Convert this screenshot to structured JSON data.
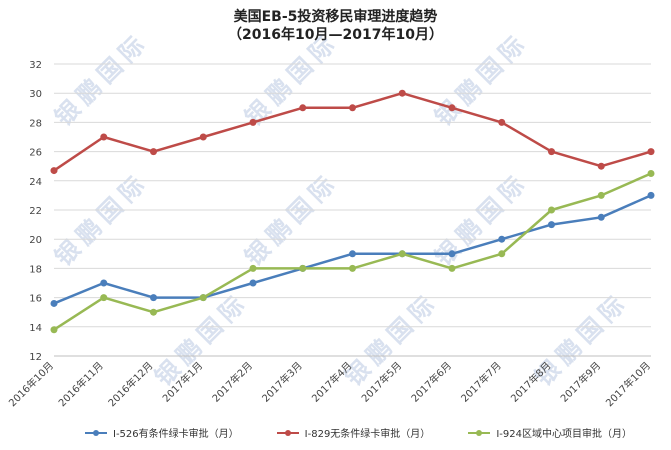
{
  "chart_data": {
    "type": "line",
    "title": "美国EB-5投资移民审理进度趋势",
    "subtitle": "（2016年10月—2017年10月）",
    "categories": [
      "2016年10月",
      "2016年11月",
      "2016年12月",
      "2017年1月",
      "2017年2月",
      "2017年3月",
      "2017年4月",
      "2017年5月",
      "2017年6月",
      "2017年7月",
      "2017年8月",
      "2017年9月",
      "2017年10月"
    ],
    "ylim": [
      12,
      32
    ],
    "yticks": [
      12,
      14,
      16,
      18,
      20,
      22,
      24,
      26,
      28,
      30,
      32
    ],
    "grid": true,
    "legend_position": "bottom",
    "series": [
      {
        "name": "I-526有条件绿卡审批（月）",
        "color": "#4a7ebb",
        "values": [
          15.6,
          17,
          16,
          16,
          17,
          18,
          19,
          19,
          19,
          20,
          21,
          21.5,
          23
        ]
      },
      {
        "name": "I-829无条件绿卡审批（月）",
        "color": "#be4b48",
        "values": [
          24.7,
          27,
          26,
          27,
          28,
          29,
          29,
          30,
          29,
          28,
          26,
          25,
          26
        ]
      },
      {
        "name": "I-924区域中心项目审批（月）",
        "color": "#98b954",
        "values": [
          13.8,
          16,
          15,
          16,
          18,
          18,
          18,
          19,
          18,
          19,
          22,
          23,
          24.5
        ]
      }
    ]
  },
  "watermark": {
    "text": "银鹏国际"
  }
}
